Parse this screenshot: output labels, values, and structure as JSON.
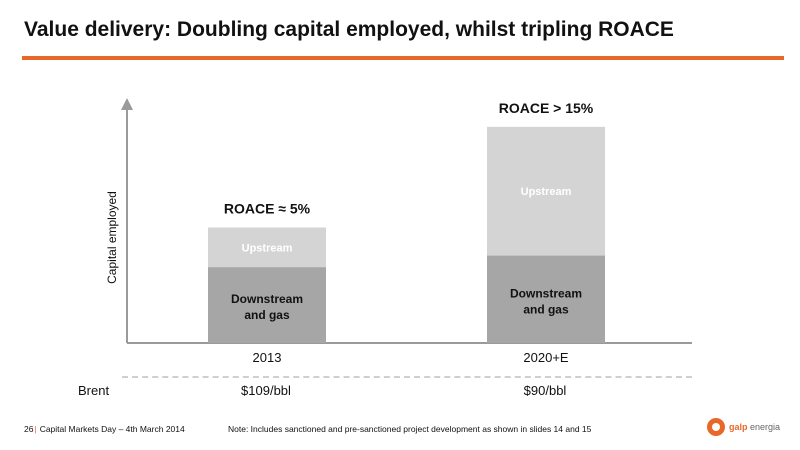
{
  "title": "Value delivery: Doubling capital employed, whilst tripling ROACE",
  "colors": {
    "accent": "#e8682a",
    "downstream": "#a6a6a6",
    "upstream": "#d4d4d4",
    "axis": "#9a9a9a"
  },
  "chart_data": {
    "type": "bar",
    "stacked": true,
    "ylabel": "Capital employed",
    "xlabel": "",
    "categories": [
      "2013",
      "2020+E"
    ],
    "series": [
      {
        "name": "Downstream and gas",
        "values": [
          0.46,
          0.53
        ]
      },
      {
        "name": "Upstream",
        "values": [
          0.24,
          0.78
        ]
      }
    ],
    "ylim": [
      0,
      1.4
    ],
    "annotations": [
      "ROACE ≈ 5%",
      "ROACE > 15%"
    ],
    "grid": false,
    "legend": "none"
  },
  "series_labels": {
    "downstream_line1": "Downstream",
    "downstream_line2": "and gas",
    "upstream": "Upstream"
  },
  "brent": {
    "label": "Brent",
    "values": [
      "$109/bbl",
      "$90/bbl"
    ]
  },
  "footer": {
    "page": "26",
    "separator": "|",
    "event": "Capital Markets Day – 4th March 2014",
    "note": "Note: Includes sanctioned and pre-sanctioned project development as shown in slides 14 and 15"
  },
  "logo": {
    "brand": "galp",
    "suffix": "energia"
  }
}
